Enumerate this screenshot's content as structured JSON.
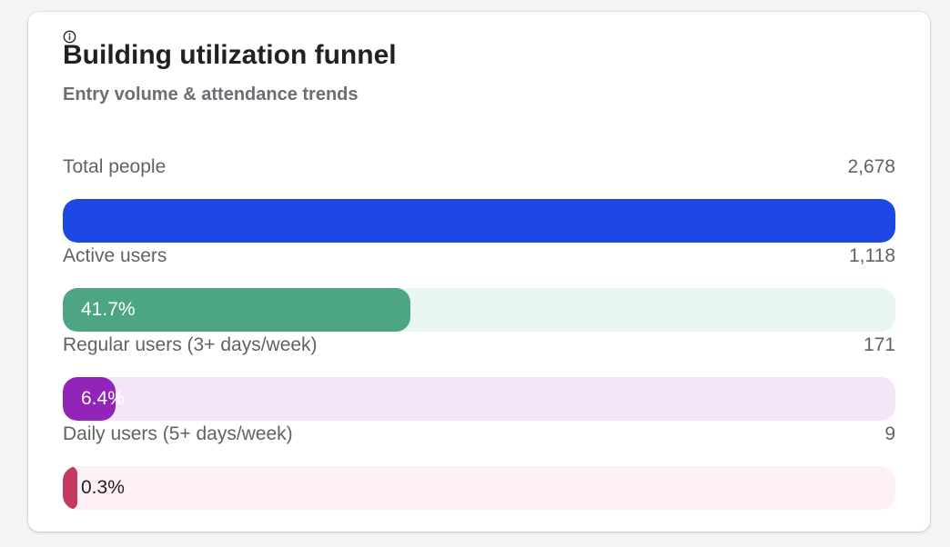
{
  "card": {
    "title": "Building utilization funnel",
    "subtitle": "Entry volume & attendance trends",
    "info_icon": "info-icon"
  },
  "chart_data": {
    "type": "bar",
    "title": "Building utilization funnel",
    "subtitle": "Entry volume & attendance trends",
    "orientation": "horizontal",
    "categories": [
      "Total people",
      "Active users",
      "Regular users (3+ days/week)",
      "Daily users (5+ days/week)"
    ],
    "values": [
      2678,
      1118,
      171,
      9
    ],
    "value_labels": [
      "2,678",
      "1,118",
      "171",
      "9"
    ],
    "percent_labels": [
      "",
      "41.7%",
      "6.4%",
      "0.3%"
    ],
    "percent_of_total": [
      100,
      41.7,
      6.4,
      0.3
    ],
    "bar_colors": [
      "#1e48e4",
      "#4ca684",
      "#9224b8",
      "#c4395f"
    ],
    "track_colors": [
      "#e7ebfb",
      "#e9f5f1",
      "#f3e6f6",
      "#fdf1f5"
    ],
    "percent_label_colors": [
      "#ffffff",
      "#ffffff",
      "#ffffff",
      "#1f2124"
    ]
  }
}
